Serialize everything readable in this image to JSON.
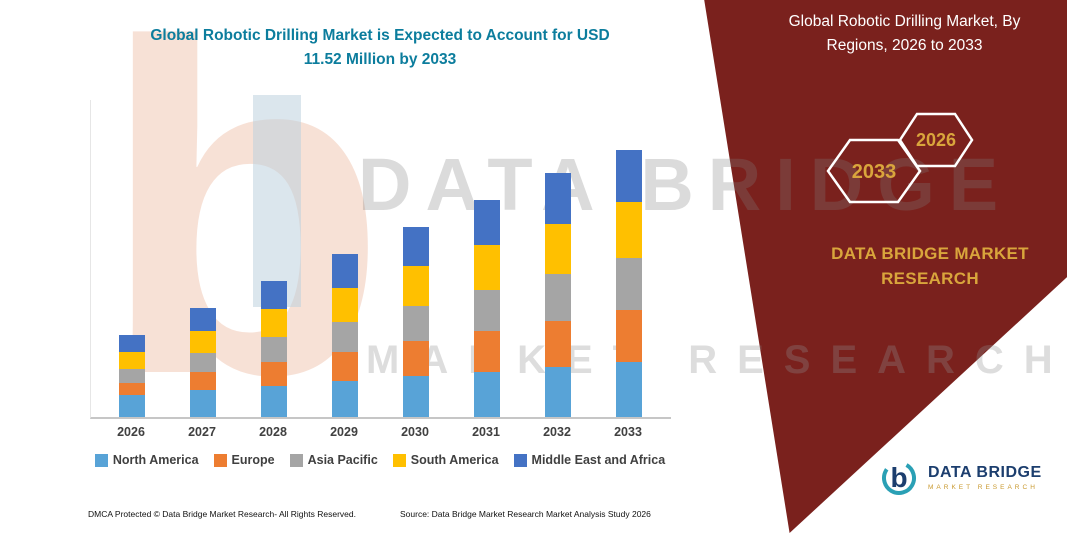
{
  "header": {
    "title_lines": [
      "Global Robotic Drilling Market is Expected to Account for USD",
      "11.52 Million by 2033"
    ]
  },
  "banner": {
    "title_lines": [
      "Global Robotic Drilling Market, By",
      "Regions, 2026 to 2033"
    ],
    "hexagons": [
      {
        "year": "2033"
      },
      {
        "year": "2026"
      }
    ],
    "brand_lines": [
      "DATA BRIDGE MARKET",
      "RESEARCH"
    ],
    "bg_color": "#7A211D",
    "gold_color": "#D9A53C"
  },
  "watermark": {
    "letter_b": "b",
    "line1": "DATA BRIDGE",
    "line2": "MARKET RESEARCH"
  },
  "chart_data": {
    "type": "bar",
    "stacked": true,
    "title": "Global Robotic Drilling Market is Expected to Account for USD 11.52 Million by 2033",
    "xlabel": "",
    "ylabel": "",
    "unit": "USD Million",
    "ylim": [
      0,
      12
    ],
    "grid": false,
    "legend_position": "bottom",
    "categories": [
      "2026",
      "2027",
      "2028",
      "2029",
      "2030",
      "2031",
      "2032",
      "2033"
    ],
    "series": [
      {
        "name": "North America",
        "color": "#58A3D7",
        "values": [
          0.95,
          1.15,
          1.35,
          1.55,
          1.76,
          1.96,
          2.16,
          2.37
        ]
      },
      {
        "name": "Europe",
        "color": "#ED7D31",
        "values": [
          0.52,
          0.77,
          1.01,
          1.25,
          1.5,
          1.74,
          1.99,
          2.24
        ]
      },
      {
        "name": "Asia Pacific",
        "color": "#A5A5A5",
        "values": [
          0.6,
          0.83,
          1.07,
          1.3,
          1.54,
          1.77,
          2.01,
          2.24
        ]
      },
      {
        "name": "South America",
        "color": "#FFC000",
        "values": [
          0.73,
          0.97,
          1.21,
          1.45,
          1.69,
          1.93,
          2.17,
          2.41
        ]
      },
      {
        "name": "Middle East and Africa",
        "color": "#4472C4",
        "values": [
          0.73,
          0.98,
          1.22,
          1.47,
          1.71,
          1.96,
          2.2,
          2.26
        ]
      }
    ],
    "totals": [
      3.53,
      4.7,
      5.86,
      7.02,
      8.2,
      9.36,
      10.53,
      11.52
    ]
  },
  "footer": {
    "dmca": "DMCA Protected © Data Bridge Market Research-  All Rights Reserved.",
    "source": "Source: Data Bridge Market Research  Market Analysis Study 2026"
  },
  "logo": {
    "name": "DATA BRIDGE",
    "tagline": "MARKET RESEARCH"
  }
}
